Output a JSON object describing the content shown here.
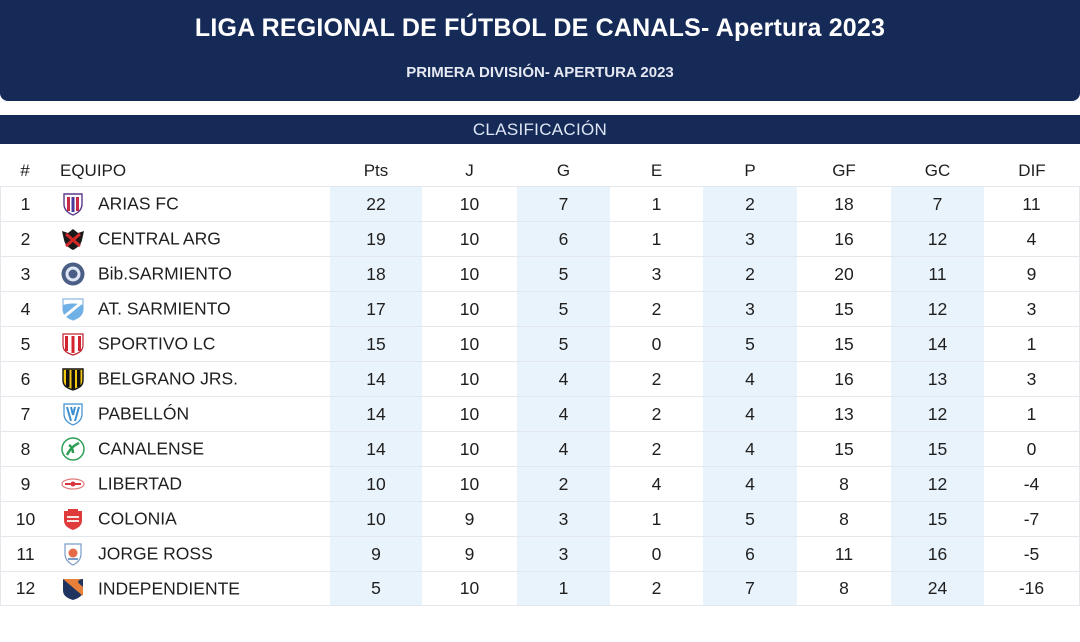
{
  "header": {
    "title": "LIGA REGIONAL DE FÚTBOL DE CANALS- Apertura 2023",
    "subtitle": "PRIMERA DIVISIÓN- APERTURA 2023"
  },
  "section": {
    "title": "CLASIFICACIÓN"
  },
  "columns": [
    "#",
    "EQUIPO",
    "Pts",
    "J",
    "G",
    "E",
    "P",
    "GF",
    "GC",
    "DIF"
  ],
  "rows": [
    {
      "pos": "1",
      "team": "ARIAS FC",
      "crest": "arias-fc-crest-icon",
      "pts": "22",
      "j": "10",
      "g": "7",
      "e": "1",
      "p": "2",
      "gf": "18",
      "gc": "7",
      "dif": "11"
    },
    {
      "pos": "2",
      "team": "CENTRAL ARG",
      "crest": "central-arg-crest-icon",
      "pts": "19",
      "j": "10",
      "g": "6",
      "e": "1",
      "p": "3",
      "gf": "16",
      "gc": "12",
      "dif": "4"
    },
    {
      "pos": "3",
      "team": "Bib.SARMIENTO",
      "crest": "bib-sarmiento-crest-icon",
      "pts": "18",
      "j": "10",
      "g": "5",
      "e": "3",
      "p": "2",
      "gf": "20",
      "gc": "11",
      "dif": "9"
    },
    {
      "pos": "4",
      "team": "AT. SARMIENTO",
      "crest": "at-sarmiento-crest-icon",
      "pts": "17",
      "j": "10",
      "g": "5",
      "e": "2",
      "p": "3",
      "gf": "15",
      "gc": "12",
      "dif": "3"
    },
    {
      "pos": "5",
      "team": "SPORTIVO LC",
      "crest": "sportivo-lc-crest-icon",
      "pts": "15",
      "j": "10",
      "g": "5",
      "e": "0",
      "p": "5",
      "gf": "15",
      "gc": "14",
      "dif": "1"
    },
    {
      "pos": "6",
      "team": "BELGRANO JRS.",
      "crest": "belgrano-jrs-crest-icon",
      "pts": "14",
      "j": "10",
      "g": "4",
      "e": "2",
      "p": "4",
      "gf": "16",
      "gc": "13",
      "dif": "3"
    },
    {
      "pos": "7",
      "team": "PABELLÓN",
      "crest": "pabellon-crest-icon",
      "pts": "14",
      "j": "10",
      "g": "4",
      "e": "2",
      "p": "4",
      "gf": "13",
      "gc": "12",
      "dif": "1"
    },
    {
      "pos": "8",
      "team": "CANALENSE",
      "crest": "canalense-crest-icon",
      "pts": "14",
      "j": "10",
      "g": "4",
      "e": "2",
      "p": "4",
      "gf": "15",
      "gc": "15",
      "dif": "0"
    },
    {
      "pos": "9",
      "team": "LIBERTAD",
      "crest": "libertad-crest-icon",
      "pts": "10",
      "j": "10",
      "g": "2",
      "e": "4",
      "p": "4",
      "gf": "8",
      "gc": "12",
      "dif": "-4"
    },
    {
      "pos": "10",
      "team": "COLONIA",
      "crest": "colonia-crest-icon",
      "pts": "10",
      "j": "9",
      "g": "3",
      "e": "1",
      "p": "5",
      "gf": "8",
      "gc": "15",
      "dif": "-7"
    },
    {
      "pos": "11",
      "team": "JORGE ROSS",
      "crest": "jorge-ross-crest-icon",
      "pts": "9",
      "j": "9",
      "g": "3",
      "e": "0",
      "p": "6",
      "gf": "11",
      "gc": "16",
      "dif": "-5"
    },
    {
      "pos": "12",
      "team": "INDEPENDIENTE",
      "crest": "independiente-crest-icon",
      "pts": "5",
      "j": "10",
      "g": "1",
      "e": "2",
      "p": "7",
      "gf": "8",
      "gc": "24",
      "dif": "-16"
    }
  ],
  "colors": {
    "header_bg": "#152a57",
    "alt_column_bg": "#e9f3fb",
    "text": "#1f1f1f"
  }
}
